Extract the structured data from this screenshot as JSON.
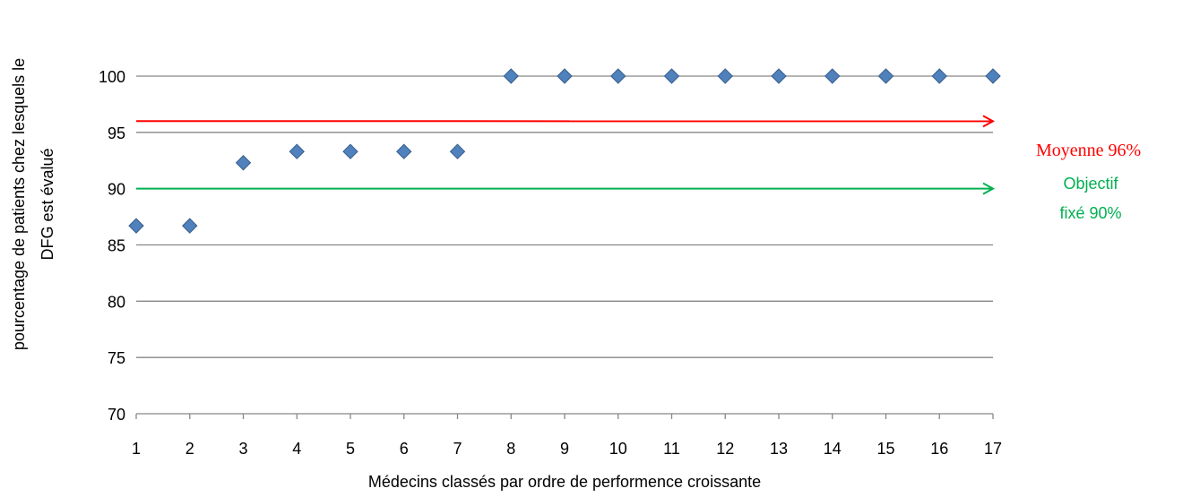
{
  "chart_data": {
    "type": "scatter",
    "x": [
      1,
      2,
      3,
      4,
      5,
      6,
      7,
      8,
      9,
      10,
      11,
      12,
      13,
      14,
      15,
      16,
      17
    ],
    "y": [
      86.7,
      86.7,
      92.3,
      93.3,
      93.3,
      93.3,
      93.3,
      100,
      100,
      100,
      100,
      100,
      100,
      100,
      100,
      100,
      100
    ],
    "xlabel": "Médecins classés par ordre de performence croissante",
    "ylabel_line1": "pourcentage de patients chez lesquels le",
    "ylabel_line2": "DFG est évalué",
    "ylim": [
      70,
      100
    ],
    "yticks": [
      70,
      75,
      80,
      85,
      90,
      95,
      100
    ],
    "xticks": [
      1,
      2,
      3,
      4,
      5,
      6,
      7,
      8,
      9,
      10,
      11,
      12,
      13,
      14,
      15,
      16,
      17
    ],
    "grid": "horizontal",
    "marker": "diamond",
    "marker_color": "#4f81bd",
    "marker_edge_color": "#385d8a",
    "reference_lines": [
      {
        "label": "Moyenne 96%",
        "value": 96,
        "color": "#ff0000"
      },
      {
        "label_line1": "Objectif",
        "label_line2": "fixé 90%",
        "value": 90,
        "color": "#00b050"
      }
    ]
  }
}
